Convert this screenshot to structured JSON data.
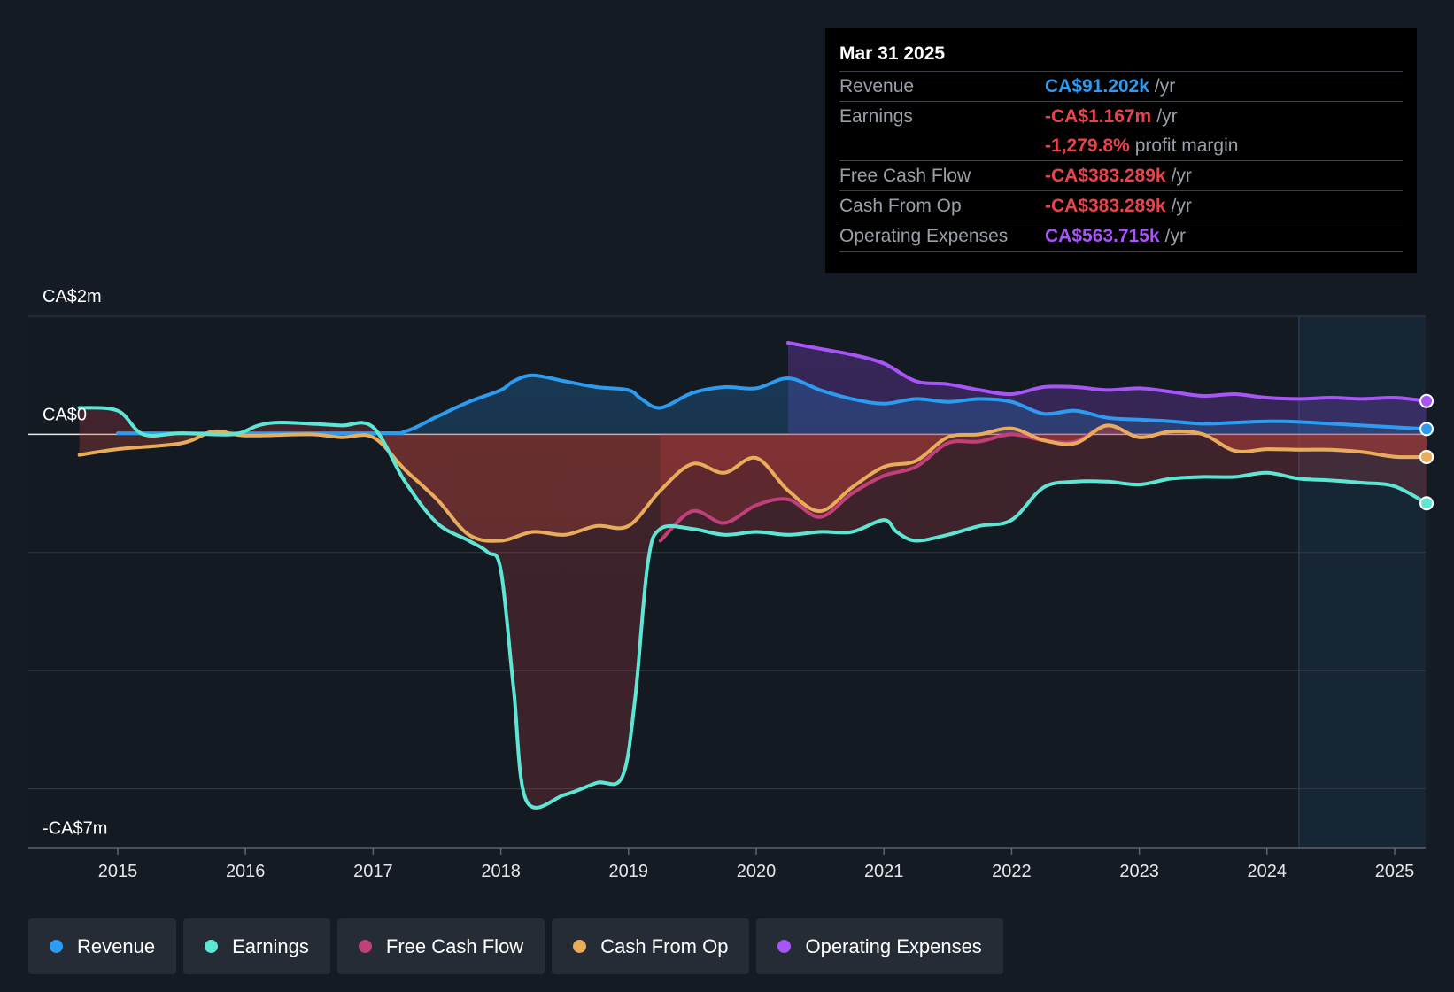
{
  "tooltip": {
    "date": "Mar 31 2025",
    "rows": [
      {
        "label": "Revenue",
        "value": "CA$91.202k",
        "unit": "/yr",
        "color": "#2d9bf0"
      },
      {
        "label": "Earnings",
        "value": "-CA$1.167m",
        "unit": "/yr",
        "color": "#e8434b"
      },
      {
        "label": "",
        "value": "-1,279.8%",
        "unit": "profit margin",
        "color": "#e8434b"
      },
      {
        "label": "Free Cash Flow",
        "value": "-CA$383.289k",
        "unit": "/yr",
        "color": "#e8434b"
      },
      {
        "label": "Cash From Op",
        "value": "-CA$383.289k",
        "unit": "/yr",
        "color": "#e8434b"
      },
      {
        "label": "Operating Expenses",
        "value": "CA$563.715k",
        "unit": "/yr",
        "color": "#a855f7"
      }
    ]
  },
  "legend": [
    {
      "label": "Revenue",
      "color": "#2d9bf0"
    },
    {
      "label": "Earnings",
      "color": "#5ee6d4"
    },
    {
      "label": "Free Cash Flow",
      "color": "#c2407a"
    },
    {
      "label": "Cash From Op",
      "color": "#e8ad5a"
    },
    {
      "label": "Operating Expenses",
      "color": "#a855f7"
    }
  ],
  "chart_data": {
    "type": "line",
    "unit": "CA$ millions",
    "ylim": [
      -7,
      2
    ],
    "y_tick_labels": [
      {
        "value": 2,
        "label": "CA$2m"
      },
      {
        "value": 0,
        "label": "CA$0"
      },
      {
        "value": -7,
        "label": "-CA$7m"
      }
    ],
    "xlim": [
      2014.3,
      2025.25
    ],
    "x_ticks": [
      2015,
      2016,
      2017,
      2018,
      2019,
      2020,
      2021,
      2022,
      2023,
      2024,
      2025
    ],
    "x_tick_labels": [
      "2015",
      "2016",
      "2017",
      "2018",
      "2019",
      "2020",
      "2021",
      "2022",
      "2023",
      "2024",
      "2025"
    ],
    "forecast_start": 2024.25,
    "grid": true,
    "series": [
      {
        "name": "Revenue",
        "color": "#2d9bf0",
        "x": [
          2015.0,
          2017.0,
          2017.25,
          2017.5,
          2017.75,
          2018.0,
          2018.1,
          2018.25,
          2018.5,
          2018.75,
          2019.0,
          2019.1,
          2019.25,
          2019.5,
          2019.75,
          2020.0,
          2020.25,
          2020.5,
          2020.75,
          2021.0,
          2021.25,
          2021.5,
          2021.75,
          2022.0,
          2022.25,
          2022.5,
          2022.75,
          2023.0,
          2023.25,
          2023.5,
          2023.75,
          2024.0,
          2024.25,
          2024.5,
          2024.75,
          2025.0,
          2025.25
        ],
        "y": [
          0.02,
          0.02,
          0.05,
          0.3,
          0.55,
          0.75,
          0.9,
          1.0,
          0.9,
          0.8,
          0.75,
          0.6,
          0.45,
          0.7,
          0.8,
          0.78,
          0.95,
          0.75,
          0.6,
          0.52,
          0.6,
          0.55,
          0.6,
          0.55,
          0.35,
          0.4,
          0.28,
          0.25,
          0.22,
          0.18,
          0.2,
          0.22,
          0.21,
          0.18,
          0.15,
          0.12,
          0.09
        ]
      },
      {
        "name": "Earnings",
        "color": "#5ee6d4",
        "x": [
          2014.7,
          2015.0,
          2015.2,
          2015.5,
          2015.9,
          2016.1,
          2016.25,
          2016.5,
          2016.75,
          2017.0,
          2017.25,
          2017.5,
          2017.75,
          2017.9,
          2018.0,
          2018.1,
          2018.2,
          2018.5,
          2018.75,
          2018.95,
          2019.05,
          2019.15,
          2019.25,
          2019.5,
          2019.75,
          2020.0,
          2020.25,
          2020.5,
          2020.75,
          2021.0,
          2021.1,
          2021.25,
          2021.5,
          2021.75,
          2022.0,
          2022.25,
          2022.5,
          2022.75,
          2023.0,
          2023.25,
          2023.5,
          2023.75,
          2024.0,
          2024.25,
          2024.5,
          2024.75,
          2025.0,
          2025.25
        ],
        "y": [
          0.45,
          0.4,
          0.0,
          0.02,
          0.0,
          0.15,
          0.2,
          0.18,
          0.15,
          0.12,
          -0.8,
          -1.5,
          -1.8,
          -2.0,
          -2.3,
          -4.3,
          -6.2,
          -6.1,
          -5.9,
          -5.8,
          -4.5,
          -2.2,
          -1.6,
          -1.6,
          -1.7,
          -1.65,
          -1.7,
          -1.65,
          -1.65,
          -1.45,
          -1.65,
          -1.8,
          -1.7,
          -1.55,
          -1.45,
          -0.9,
          -0.8,
          -0.8,
          -0.85,
          -0.75,
          -0.72,
          -0.72,
          -0.65,
          -0.75,
          -0.78,
          -0.82,
          -0.88,
          -1.167
        ]
      },
      {
        "name": "Free Cash Flow",
        "color": "#c2407a",
        "x": [
          2019.25,
          2019.5,
          2019.75,
          2020.0,
          2020.25,
          2020.5,
          2020.75,
          2021.0,
          2021.25,
          2021.5,
          2021.75,
          2022.0,
          2022.25,
          2022.5,
          2022.75,
          2023.0,
          2023.25,
          2023.5,
          2023.75,
          2024.0,
          2024.25,
          2024.5,
          2024.75,
          2025.0,
          2025.25
        ],
        "y": [
          -1.8,
          -1.3,
          -1.5,
          -1.2,
          -1.1,
          -1.4,
          -1.0,
          -0.7,
          -0.55,
          -0.15,
          -0.12,
          0.0,
          -0.1,
          -0.12,
          0.15,
          -0.05,
          0.05,
          0.0,
          -0.28,
          -0.25,
          -0.26,
          -0.26,
          -0.3,
          -0.38,
          -0.383
        ]
      },
      {
        "name": "Cash From Op",
        "color": "#e8ad5a",
        "x": [
          2014.7,
          2015.0,
          2015.5,
          2015.75,
          2016.0,
          2016.5,
          2016.75,
          2017.0,
          2017.25,
          2017.5,
          2017.75,
          2018.0,
          2018.25,
          2018.5,
          2018.75,
          2019.0,
          2019.25,
          2019.5,
          2019.75,
          2020.0,
          2020.25,
          2020.5,
          2020.75,
          2021.0,
          2021.25,
          2021.5,
          2021.75,
          2022.0,
          2022.25,
          2022.5,
          2022.75,
          2023.0,
          2023.25,
          2023.5,
          2023.75,
          2024.0,
          2024.25,
          2024.5,
          2024.75,
          2025.0,
          2025.25
        ],
        "y": [
          -0.35,
          -0.25,
          -0.15,
          0.05,
          -0.02,
          0.0,
          -0.05,
          -0.05,
          -0.6,
          -1.1,
          -1.7,
          -1.8,
          -1.65,
          -1.7,
          -1.55,
          -1.55,
          -0.95,
          -0.5,
          -0.65,
          -0.4,
          -0.95,
          -1.3,
          -0.9,
          -0.55,
          -0.45,
          -0.05,
          0.0,
          0.1,
          -0.1,
          -0.15,
          0.15,
          -0.05,
          0.05,
          0.0,
          -0.28,
          -0.25,
          -0.26,
          -0.26,
          -0.3,
          -0.38,
          -0.383
        ]
      },
      {
        "name": "Operating Expenses",
        "color": "#a855f7",
        "x": [
          2020.25,
          2020.5,
          2020.75,
          2021.0,
          2021.25,
          2021.5,
          2021.75,
          2022.0,
          2022.25,
          2022.5,
          2022.75,
          2023.0,
          2023.25,
          2023.5,
          2023.75,
          2024.0,
          2024.25,
          2024.5,
          2024.75,
          2025.0,
          2025.25
        ],
        "y": [
          1.55,
          1.45,
          1.35,
          1.2,
          0.9,
          0.85,
          0.75,
          0.68,
          0.8,
          0.8,
          0.75,
          0.78,
          0.72,
          0.65,
          0.68,
          0.62,
          0.6,
          0.62,
          0.6,
          0.62,
          0.564
        ]
      }
    ]
  }
}
